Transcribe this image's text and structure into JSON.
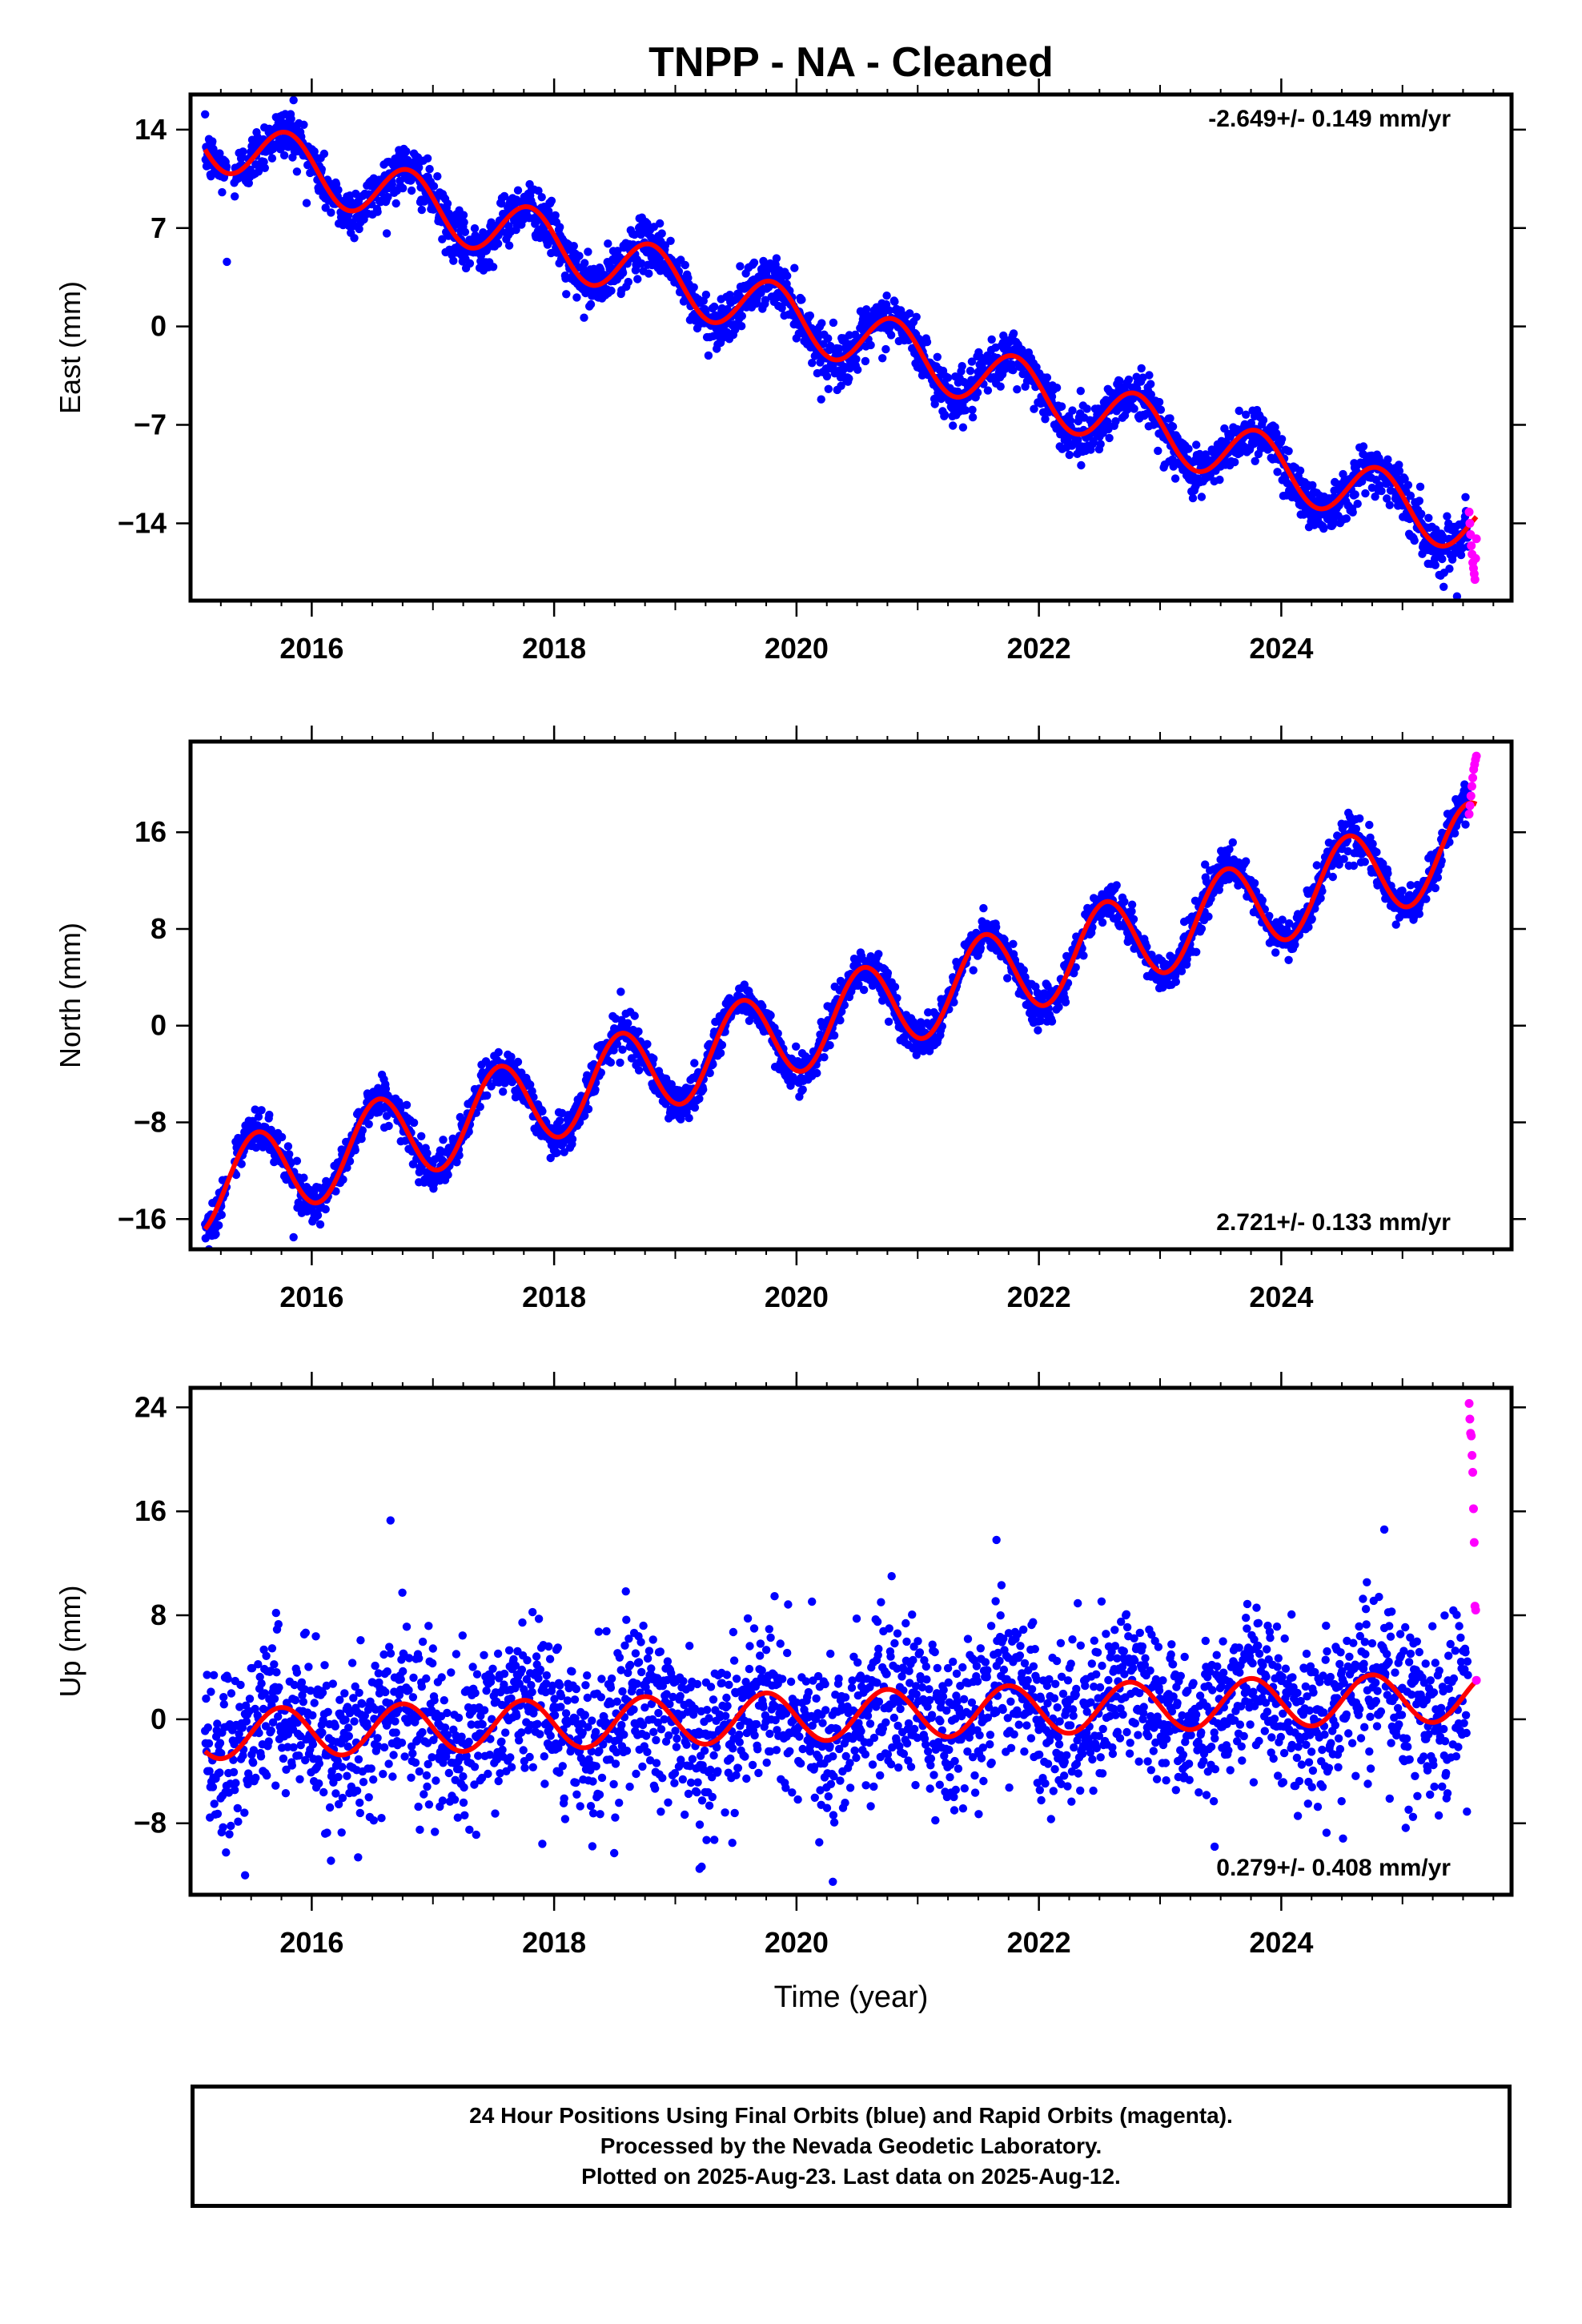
{
  "title": "TNPP  - NA - Cleaned",
  "colors": {
    "final": "#0000ff",
    "rapid": "#ff00ff",
    "fit": "#ff0000",
    "axis": "#000000"
  },
  "footer": {
    "line1": "24 Hour Positions Using Final Orbits (blue) and Rapid Orbits (magenta).",
    "line2": "Processed by the Nevada Geodetic Laboratory.",
    "line3": "Plotted on 2025-Aug-23. Last data on 2025-Aug-12."
  },
  "chart_data": [
    {
      "type": "scatter",
      "component": "east",
      "ylabel": "East (mm)",
      "xlabel": "",
      "xlim": [
        2015.0,
        2025.9
      ],
      "ylim": [
        -19.5,
        16.5
      ],
      "yticks": [
        -14,
        -7,
        0,
        7,
        14
      ],
      "xticks": [
        2016,
        2018,
        2020,
        2022,
        2024
      ],
      "rate_label": "-2.649+/- 0.149 mm/yr",
      "rate_position": "top-right",
      "fit": {
        "intercept_2015": 13.8,
        "rate": -2.649,
        "annual_amp": 2.1,
        "annual_peak": 0.8,
        "start": 2015.12,
        "end": 2025.61
      },
      "scatter_sigma": 0.9,
      "outliers": [
        [
          2015.3,
          4.6
        ],
        [
          2015.85,
          16.1
        ],
        [
          2018.1,
          2.3
        ],
        [
          2025.45,
          -19.2
        ]
      ],
      "rapid": {
        "x_start": 2025.55,
        "x_end": 2025.61,
        "y_values": [
          -13.2,
          -14.0,
          -14.8,
          -15.6,
          -16.2,
          -16.8,
          -17.2,
          -17.6,
          -18.0,
          -16.5,
          -15.1
        ]
      }
    },
    {
      "type": "scatter",
      "component": "north",
      "ylabel": "North (mm)",
      "xlabel": "",
      "xlim": [
        2015.0,
        2025.9
      ],
      "ylim": [
        -18.5,
        23.5
      ],
      "yticks": [
        -16,
        -8,
        0,
        8,
        16
      ],
      "xticks": [
        2016,
        2018,
        2020,
        2022,
        2024
      ],
      "rate_label": "2.721+/- 0.133 mm/yr",
      "rate_position": "bottom-right",
      "fit": {
        "intercept_2015": -13.9,
        "rate": 2.721,
        "annual_amp": 3.6,
        "annual_peak": 0.55,
        "start": 2015.12,
        "end": 2025.61
      },
      "scatter_sigma": 0.8,
      "outliers": [
        [
          2015.85,
          -17.5
        ],
        [
          2018.55,
          2.8
        ],
        [
          2023.55,
          14.2
        ]
      ],
      "rapid": {
        "x_start": 2025.55,
        "x_end": 2025.61,
        "y_values": [
          17.5,
          18.2,
          19.0,
          19.8,
          20.5,
          21.2,
          21.6,
          22.0,
          22.3
        ]
      }
    },
    {
      "type": "scatter",
      "component": "up",
      "ylabel": "Up (mm)",
      "xlabel": "Time (year)",
      "xlim": [
        2015.0,
        2025.9
      ],
      "ylim": [
        -13.5,
        25.5
      ],
      "yticks": [
        -8,
        0,
        8,
        16,
        24
      ],
      "xticks": [
        2016,
        2018,
        2020,
        2022,
        2024
      ],
      "rate_label": "0.279+/- 0.408 mm/yr",
      "rate_position": "bottom-right",
      "fit": {
        "intercept_2015": -1.2,
        "rate": 0.279,
        "annual_amp": 1.9,
        "annual_peak": 0.75,
        "start": 2015.12,
        "end": 2025.61
      },
      "scatter_sigma": 3.0,
      "outliers": [
        [
          2016.65,
          15.3
        ],
        [
          2021.65,
          13.8
        ],
        [
          2024.85,
          14.6
        ],
        [
          2023.45,
          -9.8
        ],
        [
          2020.3,
          -12.5
        ],
        [
          2019.2,
          -11.5
        ],
        [
          2015.45,
          -12.0
        ]
      ],
      "rapid": {
        "x_start": 2025.55,
        "x_end": 2025.61,
        "y_values": [
          24.3,
          23.1,
          22.0,
          21.8,
          20.3,
          19.0,
          16.2,
          13.6,
          8.7,
          8.4,
          3.0
        ]
      }
    }
  ]
}
